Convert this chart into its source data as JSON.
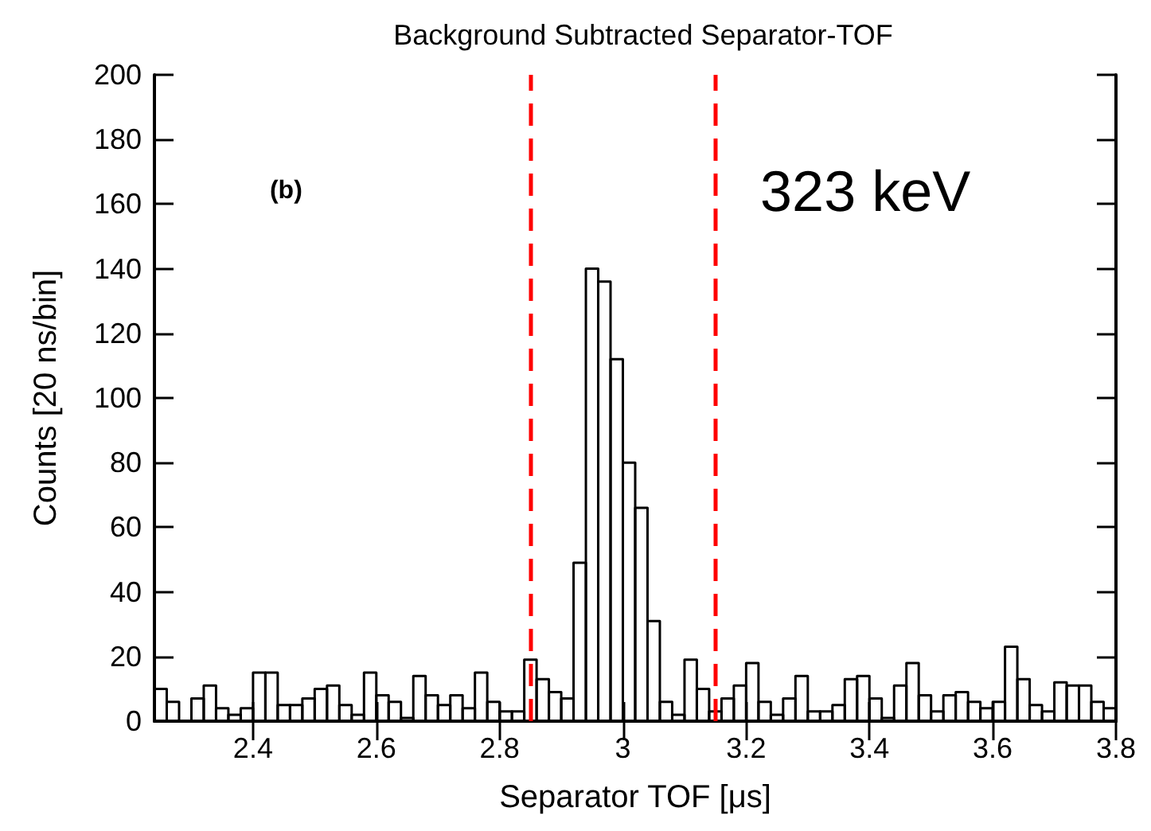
{
  "chart_data": {
    "type": "histogram",
    "title": "Background Subtracted Separator-TOF",
    "xlabel": "Separator TOF [μs]",
    "ylabel": "Counts [20 ns/bin]",
    "bins": [
      2.24,
      2.26,
      2.28,
      2.3,
      2.32,
      2.34,
      2.36,
      2.38,
      2.4,
      2.42,
      2.44,
      2.46,
      2.48,
      2.5,
      2.52,
      2.54,
      2.56,
      2.58,
      2.6,
      2.62,
      2.64,
      2.66,
      2.68,
      2.7,
      2.72,
      2.74,
      2.76,
      2.78,
      2.8,
      2.82,
      2.84,
      2.86,
      2.88,
      2.9,
      2.92,
      2.94,
      2.96,
      2.98,
      3.0,
      3.02,
      3.04,
      3.06,
      3.08,
      3.1,
      3.12,
      3.14,
      3.16,
      3.18,
      3.2,
      3.22,
      3.24,
      3.26,
      3.28,
      3.3,
      3.32,
      3.34,
      3.36,
      3.38,
      3.4,
      3.42,
      3.44,
      3.46,
      3.48,
      3.5,
      3.52,
      3.54,
      3.56,
      3.58,
      3.6,
      3.62,
      3.64,
      3.66,
      3.68,
      3.7,
      3.72,
      3.74,
      3.76,
      3.78,
      3.8
    ],
    "values": [
      10,
      6,
      0,
      7,
      11,
      4,
      2,
      4,
      15,
      15,
      5,
      5,
      7,
      10,
      11,
      5,
      2,
      15,
      8,
      6,
      1,
      14,
      8,
      5,
      8,
      4,
      15,
      6,
      3,
      3,
      19,
      13,
      9,
      7,
      49,
      140,
      136,
      112,
      80,
      66,
      31,
      6,
      2,
      19,
      10,
      3,
      7,
      11,
      18,
      6,
      2,
      7,
      14,
      3,
      3,
      5,
      13,
      14,
      7,
      1,
      11,
      18,
      8,
      3,
      8,
      9,
      6,
      4,
      6,
      23,
      13,
      5,
      3,
      12,
      11,
      11,
      6,
      4
    ],
    "color": "#000000",
    "xlim": [
      2.24,
      3.8
    ],
    "xticks": [
      2.4,
      2.6,
      2.8,
      3,
      3.2,
      3.4,
      3.6,
      3.8
    ],
    "ylim": [
      0,
      200
    ],
    "yticks": [
      0,
      20,
      40,
      60,
      80,
      100,
      120,
      140,
      160,
      180,
      200
    ],
    "grid": false,
    "ref_lines": [
      {
        "axis": "x",
        "value": 2.85,
        "label": null,
        "color": "#ff0000",
        "line_style": "dashed"
      },
      {
        "axis": "x",
        "value": 3.15,
        "label": null,
        "color": "#ff0000",
        "line_style": "dashed"
      }
    ],
    "annotations": [
      "(b)",
      "323 keV"
    ]
  }
}
